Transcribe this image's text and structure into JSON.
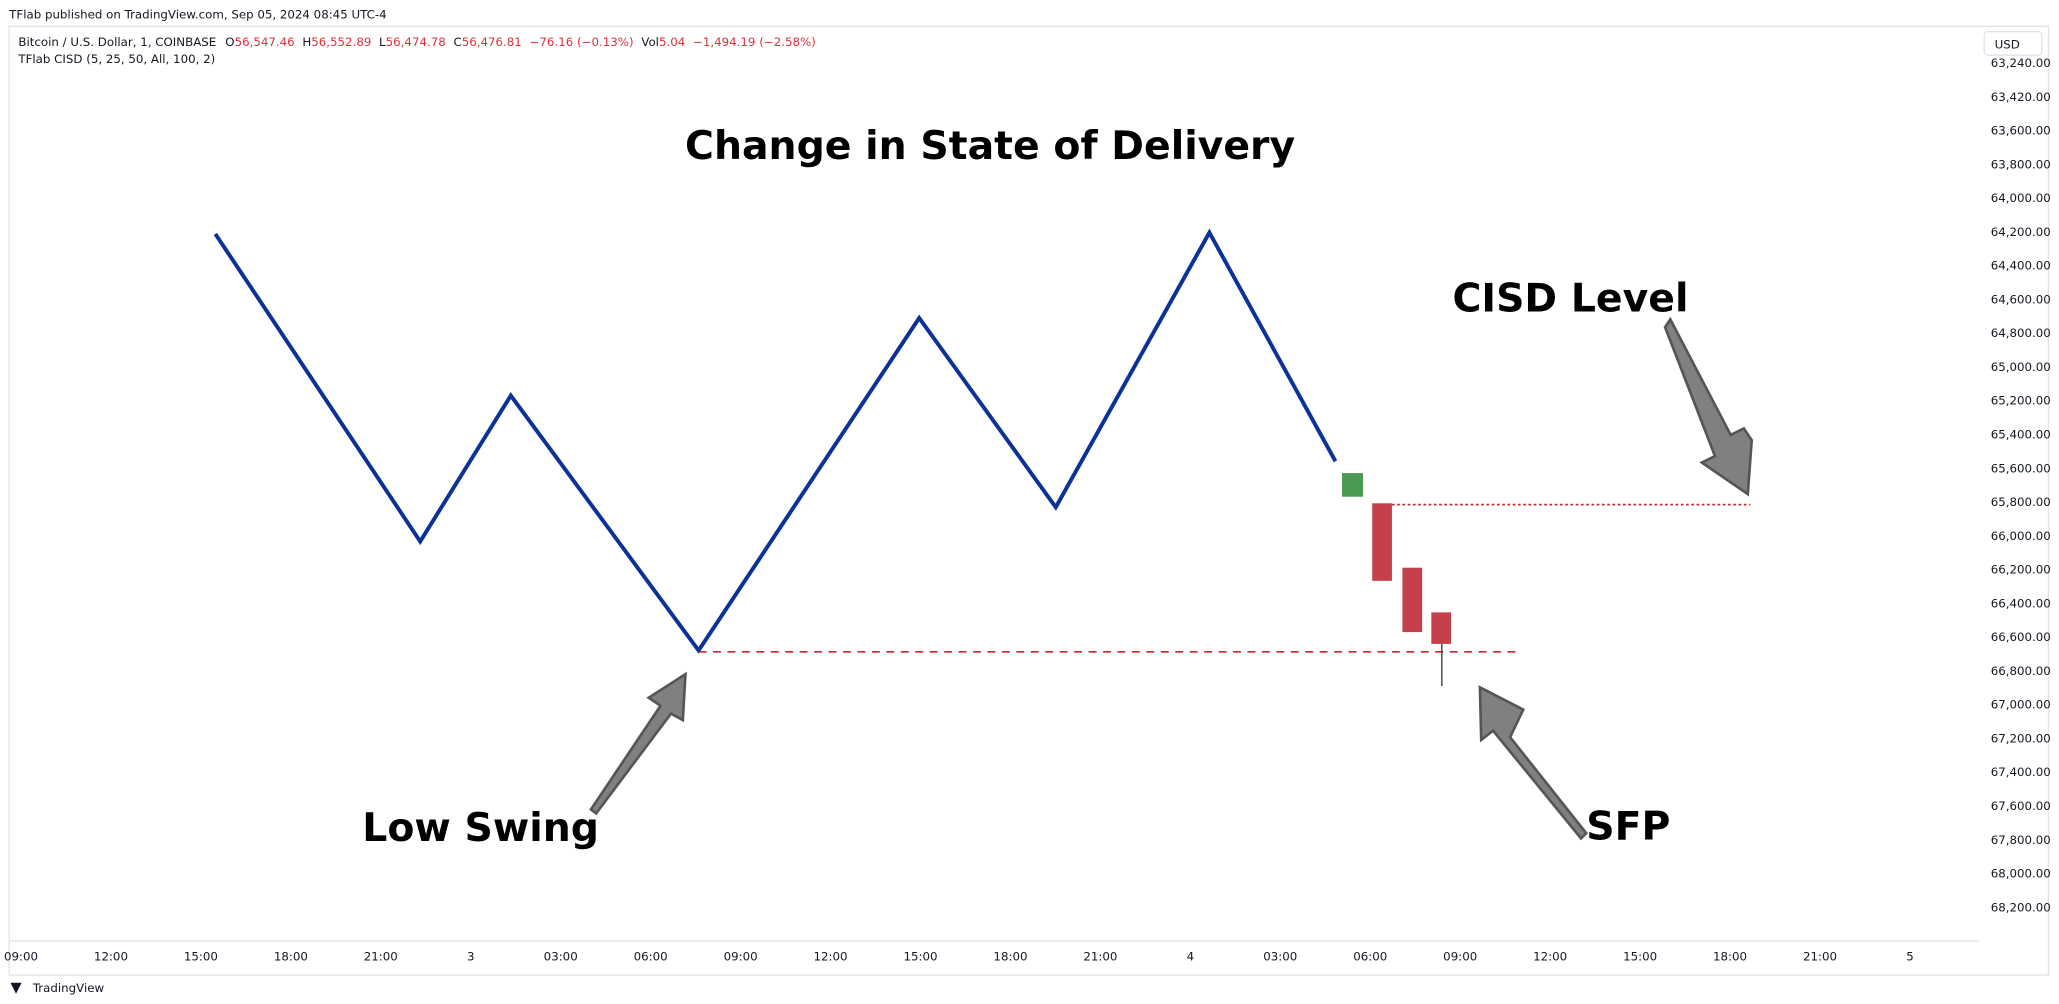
{
  "header": {
    "published": "TFlab published on TradingView.com, Sep 05, 2024 08:45 UTC-4",
    "symbol": "Bitcoin / U.S. Dollar, 1, COINBASE",
    "open_label": "O",
    "open": "56,547.46",
    "high_label": "H",
    "high": "56,552.89",
    "low_label": "L",
    "low": "56,474.78",
    "close_label": "C",
    "close": "56,476.81",
    "change": "−76.16 (−0.13%)",
    "vol_label": "Vol",
    "vol": "5.04",
    "vol_change": "−1,494.19 (−2.58%)",
    "indicator": "TFlab CISD (5, 25, 50, All, 100, 2)",
    "currency": "USD"
  },
  "price_axis": [
    "63,240.00",
    "63,420.00",
    "63,600.00",
    "63,800.00",
    "64,000.00",
    "64,200.00",
    "64,400.00",
    "64,600.00",
    "64,800.00",
    "65,000.00",
    "65,200.00",
    "65,400.00",
    "65,600.00",
    "65,800.00",
    "66,000.00",
    "66,200.00",
    "66,400.00",
    "66,600.00",
    "66,800.00",
    "67,000.00",
    "67,200.00",
    "67,400.00",
    "67,600.00",
    "67,800.00",
    "68,000.00",
    "68,200.00"
  ],
  "time_axis": [
    "09:00",
    "12:00",
    "15:00",
    "18:00",
    "21:00",
    "3",
    "03:00",
    "06:00",
    "09:00",
    "12:00",
    "15:00",
    "18:00",
    "21:00",
    "4",
    "03:00",
    "06:00",
    "09:00",
    "12:00",
    "15:00",
    "18:00",
    "21:00",
    "5"
  ],
  "annotations": {
    "title": "Change in State of Delivery",
    "cisd": "CISD Level",
    "low_swing": "Low Swing",
    "sfp": "SFP"
  },
  "footer": "TradingView"
}
